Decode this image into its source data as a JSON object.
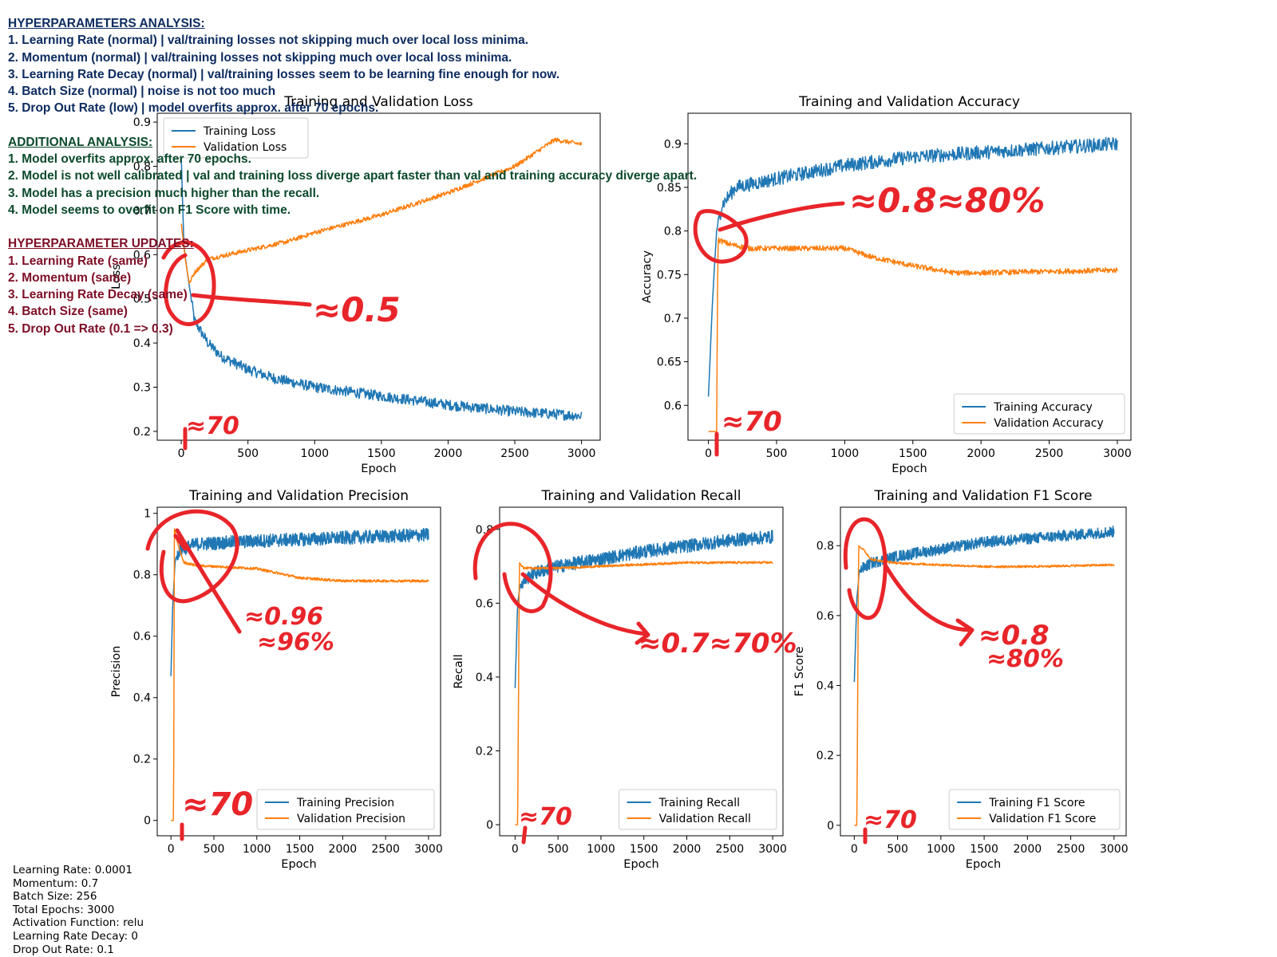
{
  "notes": {
    "hyper_analysis": {
      "heading": "HYPERPARAMETERS ANALYSIS:",
      "items": [
        "1. Learning Rate (normal) | val/training losses not skipping much over local loss minima.",
        "2. Momentum (normal) | val/training losses not skipping much over local loss minima.",
        "3. Learning Rate Decay (normal) | val/training losses seem to be learning fine enough for now.",
        "4. Batch Size (normal) | noise is not too much",
        "5. Drop Out Rate (low) | model overfits approx. after 70 epochs."
      ],
      "color": "#0d2c60"
    },
    "additional_analysis": {
      "heading": "ADDITIONAL ANALYSIS:",
      "items": [
        "1. Model overfits approx. after 70 epochs.",
        "2. Model is not well calibrated | val and training loss diverge apart faster than val and training accuracy diverge apart.",
        "3. Model has a precision much higher than the recall.",
        "4. Model seems to overfit on F1 Score with time."
      ],
      "color": "#0b4a2c"
    },
    "hyper_updates": {
      "heading": "HYPERPARAMETER UPDATES:",
      "items": [
        "1. Learning Rate (same)",
        "2. Momentum (same)",
        "3. Learning Rate Decay (same)",
        "4. Batch Size (same)",
        "5. Drop Out Rate (0.1 => 0.3)"
      ],
      "color": "#7e0e26"
    }
  },
  "params": [
    "Learning Rate: 0.0001",
    "Momentum: 0.7",
    "Batch Size: 256",
    "Total Epochs: 3000",
    "Activation Function: relu",
    "Learning Rate Decay: 0",
    "Drop Out Rate: 0.1"
  ],
  "colors": {
    "training": "#1f77b4",
    "validation": "#ff7f0e",
    "annotation": "#e8252a"
  },
  "chart_data": [
    {
      "type": "line",
      "title": "Training and Validation Loss",
      "xlabel": "Epoch",
      "ylabel": "Loss",
      "xlim": [
        -180,
        3140
      ],
      "ylim": [
        0.18,
        0.92
      ],
      "xticks": [
        0,
        500,
        1000,
        1500,
        2000,
        2500,
        3000
      ],
      "yticks": [
        0.2,
        0.3,
        0.4,
        0.5,
        0.6,
        0.7,
        0.8,
        0.9
      ],
      "legend": "upper-left",
      "series": [
        {
          "name": "Training Loss",
          "points": [
            [
              0,
              0.82
            ],
            [
              20,
              0.62
            ],
            [
              50,
              0.55
            ],
            [
              100,
              0.45
            ],
            [
              200,
              0.4
            ],
            [
              300,
              0.37
            ],
            [
              500,
              0.34
            ],
            [
              700,
              0.32
            ],
            [
              1000,
              0.3
            ],
            [
              1500,
              0.28
            ],
            [
              2000,
              0.26
            ],
            [
              2500,
              0.245
            ],
            [
              3000,
              0.235
            ]
          ],
          "noise": 0.012
        },
        {
          "name": "Validation Loss",
          "points": [
            [
              0,
              0.67
            ],
            [
              30,
              0.59
            ],
            [
              60,
              0.535
            ],
            [
              100,
              0.56
            ],
            [
              200,
              0.59
            ],
            [
              500,
              0.61
            ],
            [
              800,
              0.63
            ],
            [
              1000,
              0.65
            ],
            [
              1500,
              0.69
            ],
            [
              2000,
              0.74
            ],
            [
              2500,
              0.8
            ],
            [
              2800,
              0.86
            ],
            [
              3000,
              0.85
            ]
          ],
          "noise": 0.005
        }
      ],
      "annotations": [
        {
          "text": "≈0.5"
        },
        {
          "text": "≈70"
        }
      ]
    },
    {
      "type": "line",
      "title": "Training and Validation Accuracy",
      "xlabel": "Epoch",
      "ylabel": "Accuracy",
      "xlim": [
        -150,
        3100
      ],
      "ylim": [
        0.56,
        0.935
      ],
      "xticks": [
        0,
        500,
        1000,
        1500,
        2000,
        2500,
        3000
      ],
      "yticks": [
        0.6,
        0.65,
        0.7,
        0.75,
        0.8,
        0.85,
        0.9
      ],
      "legend": "lower-right",
      "series": [
        {
          "name": "Training Accuracy",
          "points": [
            [
              0,
              0.61
            ],
            [
              30,
              0.72
            ],
            [
              60,
              0.8
            ],
            [
              100,
              0.83
            ],
            [
              200,
              0.85
            ],
            [
              500,
              0.86
            ],
            [
              1000,
              0.875
            ],
            [
              1500,
              0.885
            ],
            [
              2000,
              0.89
            ],
            [
              2500,
              0.895
            ],
            [
              3000,
              0.9
            ]
          ],
          "noise": 0.008
        },
        {
          "name": "Validation Accuracy",
          "points": [
            [
              0,
              0.57
            ],
            [
              60,
              0.57
            ],
            [
              70,
              0.79
            ],
            [
              150,
              0.785
            ],
            [
              300,
              0.78
            ],
            [
              1000,
              0.78
            ],
            [
              1200,
              0.77
            ],
            [
              1500,
              0.76
            ],
            [
              1800,
              0.752
            ],
            [
              2000,
              0.752
            ],
            [
              3000,
              0.755
            ]
          ],
          "noise": 0.003
        }
      ],
      "annotations": [
        {
          "text": "≈0.8≈80%"
        },
        {
          "text": "≈70"
        }
      ]
    },
    {
      "type": "line",
      "title": "Training and Validation Precision",
      "xlabel": "Epoch",
      "ylabel": "Precision",
      "xlim": [
        -160,
        3140
      ],
      "ylim": [
        -0.05,
        1.02
      ],
      "xticks": [
        0,
        500,
        1000,
        1500,
        2000,
        2500,
        3000
      ],
      "yticks": [
        0.0,
        0.2,
        0.4,
        0.6,
        0.8,
        1.0
      ],
      "legend": "lower-right",
      "series": [
        {
          "name": "Training Precision",
          "points": [
            [
              0,
              0.47
            ],
            [
              20,
              0.7
            ],
            [
              50,
              0.85
            ],
            [
              100,
              0.88
            ],
            [
              300,
              0.9
            ],
            [
              1000,
              0.91
            ],
            [
              2000,
              0.92
            ],
            [
              3000,
              0.93
            ]
          ],
          "noise": 0.022
        },
        {
          "name": "Validation Precision",
          "points": [
            [
              0,
              0.0
            ],
            [
              30,
              0.0
            ],
            [
              40,
              0.95
            ],
            [
              80,
              0.9
            ],
            [
              150,
              0.84
            ],
            [
              300,
              0.83
            ],
            [
              1000,
              0.82
            ],
            [
              1500,
              0.79
            ],
            [
              2000,
              0.78
            ],
            [
              3000,
              0.78
            ]
          ],
          "noise": 0.004
        }
      ],
      "annotations": [
        {
          "text": "≈0.96"
        },
        {
          "text": "≈96%"
        },
        {
          "text": "≈70"
        }
      ]
    },
    {
      "type": "line",
      "title": "Training and Validation Recall",
      "xlabel": "Epoch",
      "ylabel": "Recall",
      "xlim": [
        -180,
        3120
      ],
      "ylim": [
        -0.03,
        0.86
      ],
      "xticks": [
        0,
        500,
        1000,
        1500,
        2000,
        2500,
        3000
      ],
      "yticks": [
        0.0,
        0.2,
        0.4,
        0.6,
        0.8
      ],
      "legend": "lower-right",
      "series": [
        {
          "name": "Training Recall",
          "points": [
            [
              0,
              0.37
            ],
            [
              30,
              0.6
            ],
            [
              60,
              0.65
            ],
            [
              200,
              0.68
            ],
            [
              500,
              0.7
            ],
            [
              1000,
              0.72
            ],
            [
              1500,
              0.74
            ],
            [
              2000,
              0.755
            ],
            [
              2500,
              0.77
            ],
            [
              3000,
              0.78
            ]
          ],
          "noise": 0.018
        },
        {
          "name": "Validation Recall",
          "points": [
            [
              0,
              0.0
            ],
            [
              30,
              0.0
            ],
            [
              50,
              0.71
            ],
            [
              100,
              0.695
            ],
            [
              500,
              0.695
            ],
            [
              1000,
              0.7
            ],
            [
              1500,
              0.705
            ],
            [
              2000,
              0.71
            ],
            [
              3000,
              0.71
            ]
          ],
          "noise": 0.003
        }
      ],
      "annotations": [
        {
          "text": "≈0.7≈70%"
        },
        {
          "text": "≈70"
        }
      ]
    },
    {
      "type": "line",
      "title": "Training and Validation F1 Score",
      "xlabel": "Epoch",
      "ylabel": "F1 Score",
      "xlim": [
        -160,
        3140
      ],
      "ylim": [
        -0.03,
        0.91
      ],
      "xticks": [
        0,
        500,
        1000,
        1500,
        2000,
        2500,
        3000
      ],
      "yticks": [
        0.0,
        0.2,
        0.4,
        0.6,
        0.8
      ],
      "legend": "lower-right",
      "series": [
        {
          "name": "Training F1 Score",
          "points": [
            [
              0,
              0.41
            ],
            [
              30,
              0.65
            ],
            [
              60,
              0.73
            ],
            [
              200,
              0.75
            ],
            [
              500,
              0.77
            ],
            [
              1000,
              0.79
            ],
            [
              1500,
              0.81
            ],
            [
              2000,
              0.82
            ],
            [
              2500,
              0.83
            ],
            [
              3000,
              0.84
            ]
          ],
          "noise": 0.016
        },
        {
          "name": "Validation F1 Score",
          "points": [
            [
              0,
              0.0
            ],
            [
              30,
              0.0
            ],
            [
              50,
              0.8
            ],
            [
              100,
              0.79
            ],
            [
              200,
              0.76
            ],
            [
              500,
              0.75
            ],
            [
              1000,
              0.745
            ],
            [
              1500,
              0.74
            ],
            [
              2000,
              0.74
            ],
            [
              3000,
              0.745
            ]
          ],
          "noise": 0.003
        }
      ],
      "annotations": [
        {
          "text": "≈0.8"
        },
        {
          "text": "≈80%"
        },
        {
          "text": "≈70"
        }
      ]
    }
  ]
}
